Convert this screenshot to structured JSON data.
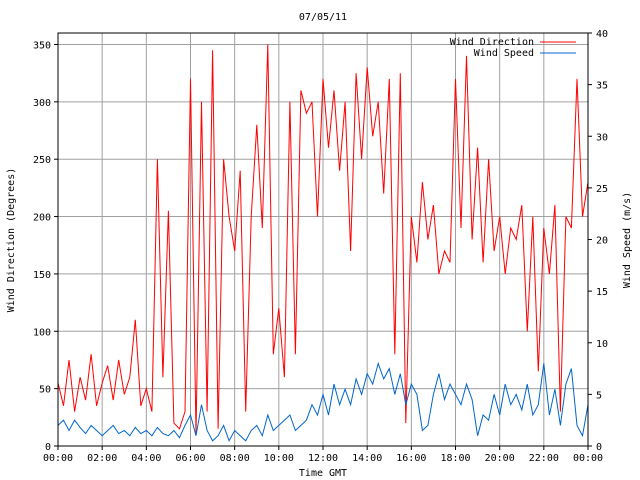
{
  "chart_data": {
    "type": "line",
    "title": "07/05/11",
    "xlabel": "Time GMT",
    "ylabel": "Wind Direction (Degrees)",
    "y2label": "Wind Speed (m/s)",
    "x_ticks": [
      "00:00",
      "02:00",
      "04:00",
      "06:00",
      "08:00",
      "10:00",
      "12:00",
      "14:00",
      "16:00",
      "18:00",
      "20:00",
      "22:00",
      "00:00"
    ],
    "x_range_hours": [
      0,
      24
    ],
    "y_ticks": [
      0,
      50,
      100,
      150,
      200,
      250,
      300,
      350
    ],
    "ylim": [
      0,
      360
    ],
    "y2_ticks": [
      0,
      5,
      10,
      15,
      20,
      25,
      30,
      35,
      40
    ],
    "y2lim": [
      0,
      40
    ],
    "grid": true,
    "legend_position": "top-right",
    "colors": {
      "direction": "#ff0000",
      "speed": "#0066cc"
    },
    "series": [
      {
        "name": "Wind Direction",
        "axis": "left",
        "x_hours": [
          0,
          0.25,
          0.5,
          0.75,
          1,
          1.25,
          1.5,
          1.75,
          2,
          2.25,
          2.5,
          2.75,
          3,
          3.25,
          3.5,
          3.75,
          4,
          4.25,
          4.5,
          4.75,
          5,
          5.25,
          5.5,
          5.75,
          6,
          6.25,
          6.5,
          6.75,
          7,
          7.25,
          7.5,
          7.75,
          8,
          8.25,
          8.5,
          8.75,
          9,
          9.25,
          9.5,
          9.75,
          10,
          10.25,
          10.5,
          10.75,
          11,
          11.25,
          11.5,
          11.75,
          12,
          12.25,
          12.5,
          12.75,
          13,
          13.25,
          13.5,
          13.75,
          14,
          14.25,
          14.5,
          14.75,
          15,
          15.25,
          15.5,
          15.75,
          16,
          16.25,
          16.5,
          16.75,
          17,
          17.25,
          17.5,
          17.75,
          18,
          18.25,
          18.5,
          18.75,
          19,
          19.25,
          19.5,
          19.75,
          20,
          20.25,
          20.5,
          20.75,
          21,
          21.25,
          21.5,
          21.75,
          22,
          22.25,
          22.5,
          22.75,
          23,
          23.25,
          23.5,
          23.75,
          24
        ],
        "values": [
          55,
          35,
          75,
          30,
          60,
          40,
          80,
          35,
          55,
          70,
          40,
          75,
          45,
          60,
          110,
          35,
          50,
          30,
          250,
          60,
          205,
          20,
          15,
          30,
          320,
          10,
          300,
          30,
          345,
          15,
          250,
          200,
          170,
          240,
          30,
          200,
          280,
          190,
          350,
          80,
          120,
          60,
          300,
          80,
          310,
          290,
          300,
          200,
          320,
          260,
          310,
          240,
          300,
          170,
          325,
          250,
          330,
          270,
          300,
          220,
          320,
          80,
          325,
          20,
          200,
          160,
          230,
          180,
          210,
          150,
          170,
          160,
          320,
          190,
          340,
          180,
          260,
          160,
          250,
          170,
          200,
          150,
          190,
          180,
          210,
          100,
          200,
          65,
          190,
          150,
          210,
          30,
          200,
          190,
          320,
          200,
          230
        ]
      },
      {
        "name": "Wind Speed",
        "axis": "right",
        "x_hours": [
          0,
          0.25,
          0.5,
          0.75,
          1,
          1.25,
          1.5,
          1.75,
          2,
          2.25,
          2.5,
          2.75,
          3,
          3.25,
          3.5,
          3.75,
          4,
          4.25,
          4.5,
          4.75,
          5,
          5.25,
          5.5,
          5.75,
          6,
          6.25,
          6.5,
          6.75,
          7,
          7.25,
          7.5,
          7.75,
          8,
          8.25,
          8.5,
          8.75,
          9,
          9.25,
          9.5,
          9.75,
          10,
          10.25,
          10.5,
          10.75,
          11,
          11.25,
          11.5,
          11.75,
          12,
          12.25,
          12.5,
          12.75,
          13,
          13.25,
          13.5,
          13.75,
          14,
          14.25,
          14.5,
          14.75,
          15,
          15.25,
          15.5,
          15.75,
          16,
          16.25,
          16.5,
          16.75,
          17,
          17.25,
          17.5,
          17.75,
          18,
          18.25,
          18.5,
          18.75,
          19,
          19.25,
          19.5,
          19.75,
          20,
          20.25,
          20.5,
          20.75,
          21,
          21.25,
          21.5,
          21.75,
          22,
          22.25,
          22.5,
          22.75,
          23,
          23.25,
          23.5,
          23.75,
          24
        ],
        "values": [
          2,
          2.5,
          1.5,
          2.5,
          1.8,
          1.2,
          2,
          1.5,
          1,
          1.5,
          2,
          1.2,
          1.5,
          1,
          1.8,
          1.2,
          1.5,
          1,
          1.8,
          1.2,
          1,
          1.5,
          0.8,
          2,
          3,
          1,
          4,
          1.5,
          0.5,
          1,
          2,
          0.5,
          1.5,
          1,
          0.5,
          1.5,
          2,
          1,
          3,
          1.5,
          2,
          2.5,
          3,
          1.5,
          2,
          2.5,
          4,
          3,
          5,
          3,
          6,
          4,
          5.5,
          4,
          6.5,
          5,
          7,
          6,
          8,
          6.5,
          7.5,
          5,
          7,
          4,
          6,
          5,
          1.5,
          2,
          5,
          7,
          4.5,
          6,
          5,
          4,
          6,
          4.5,
          1,
          3,
          2.5,
          5,
          3,
          6,
          4,
          5,
          3.5,
          6,
          3,
          4,
          8,
          3,
          5.5,
          2,
          6,
          7.5,
          2,
          1,
          4
        ]
      }
    ]
  }
}
